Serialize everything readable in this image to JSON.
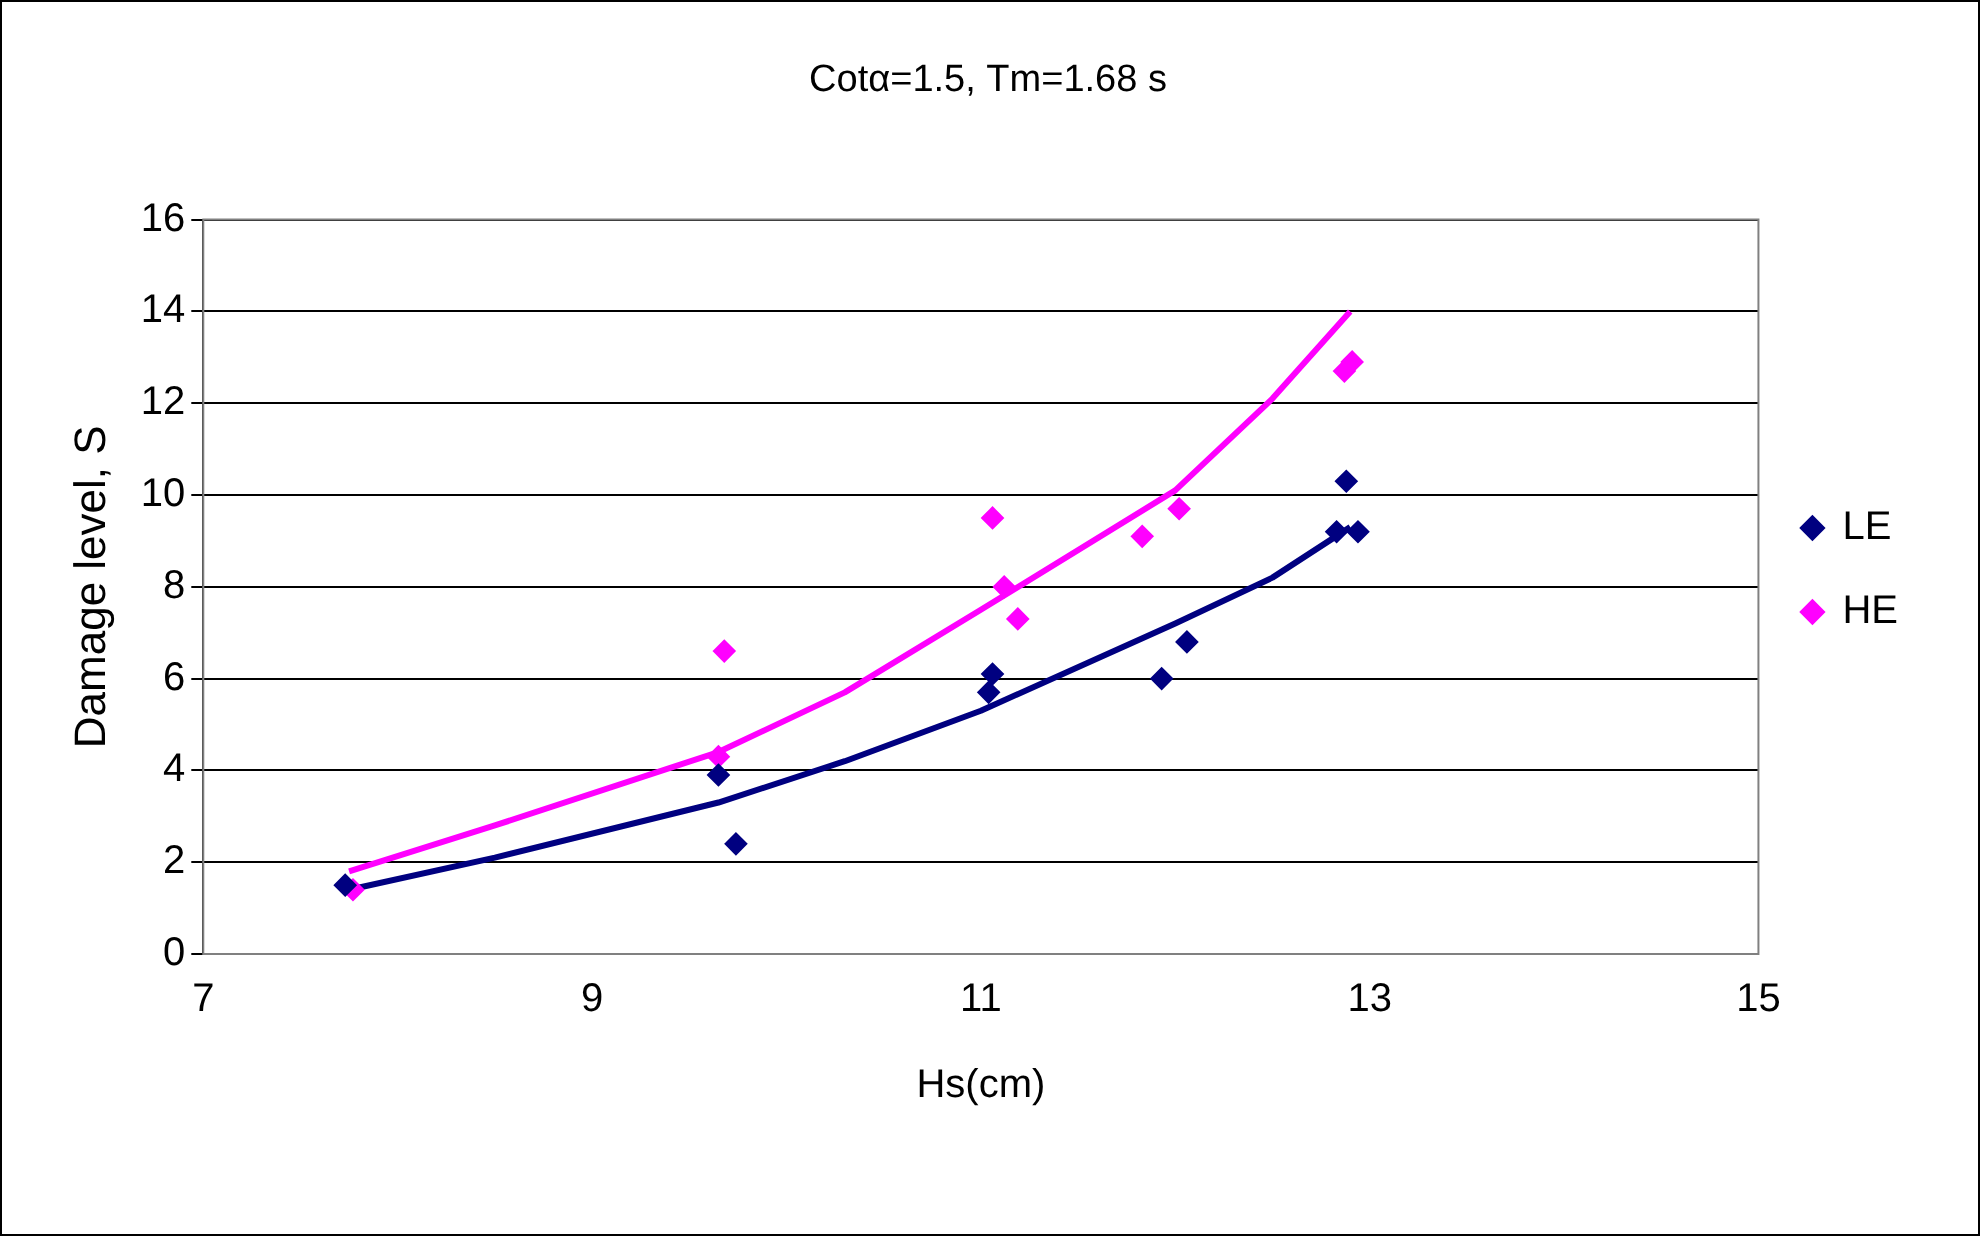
{
  "chart_data": {
    "type": "scatter",
    "title": "Cotα=1.5, Tm=1.68 s",
    "xlabel": "Hs(cm)",
    "ylabel": "Damage level, S",
    "xlim": [
      7,
      15
    ],
    "xticks": [
      7,
      9,
      11,
      13,
      15
    ],
    "ylim": [
      0,
      16
    ],
    "yticks": [
      0,
      2,
      4,
      6,
      8,
      10,
      12,
      14,
      16
    ],
    "grid": "y",
    "legend": "right",
    "marker": "diamond",
    "series": [
      {
        "name": "LE",
        "color": "#000080",
        "x": [
          7.73,
          9.65,
          9.74,
          11.06,
          11.04,
          11.93,
          12.06,
          12.88,
          12.83,
          12.94
        ],
        "values": [
          1.5,
          3.9,
          2.4,
          6.1,
          5.7,
          6.0,
          6.8,
          10.3,
          9.2,
          9.2
        ]
      },
      {
        "name": "HE",
        "color": "#ff00ff",
        "x": [
          7.77,
          9.68,
          9.65,
          11.06,
          11.12,
          11.19,
          11.83,
          12.02,
          12.87,
          12.91
        ],
        "values": [
          1.4,
          6.6,
          4.3,
          9.5,
          8.0,
          7.3,
          9.1,
          9.7,
          12.7,
          12.9
        ]
      },
      {
        "type": "line",
        "color": "#000080",
        "marker": "none",
        "x": [
          7.75,
          8.5,
          9.65,
          10.3,
          11.0,
          12.0,
          12.5,
          12.9
        ],
        "values": [
          1.4,
          2.1,
          3.3,
          4.2,
          5.3,
          7.2,
          8.2,
          9.3
        ]
      },
      {
        "type": "line",
        "color": "#ff00ff",
        "marker": "none",
        "x": [
          7.75,
          8.5,
          9.65,
          10.3,
          11.0,
          12.0,
          12.5,
          12.9
        ],
        "values": [
          1.8,
          2.8,
          4.4,
          5.7,
          7.5,
          10.1,
          12.1,
          14.0
        ]
      }
    ]
  }
}
